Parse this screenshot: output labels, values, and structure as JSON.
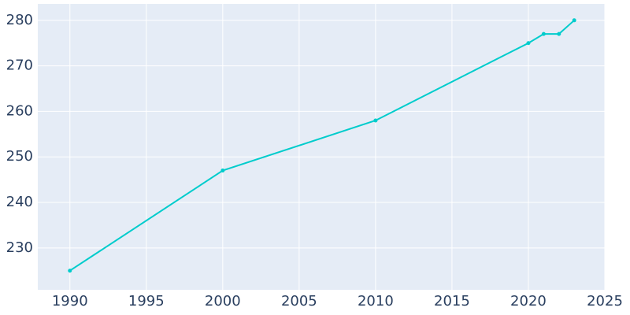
{
  "chart_data": {
    "type": "line",
    "x": [
      1990,
      2000,
      2010,
      2020,
      2021,
      2022,
      2023
    ],
    "series": [
      {
        "color": "#00cccc",
        "values": [
          225,
          247,
          258,
          275,
          277,
          277,
          280
        ]
      }
    ],
    "xlim": [
      1987.9,
      2025
    ],
    "xticks": [
      1990,
      1995,
      2000,
      2005,
      2010,
      2015,
      2020,
      2025
    ],
    "ylim": [
      220.8,
      283.6
    ],
    "yticks": [
      230,
      240,
      250,
      260,
      270,
      280
    ],
    "grid": true
  }
}
